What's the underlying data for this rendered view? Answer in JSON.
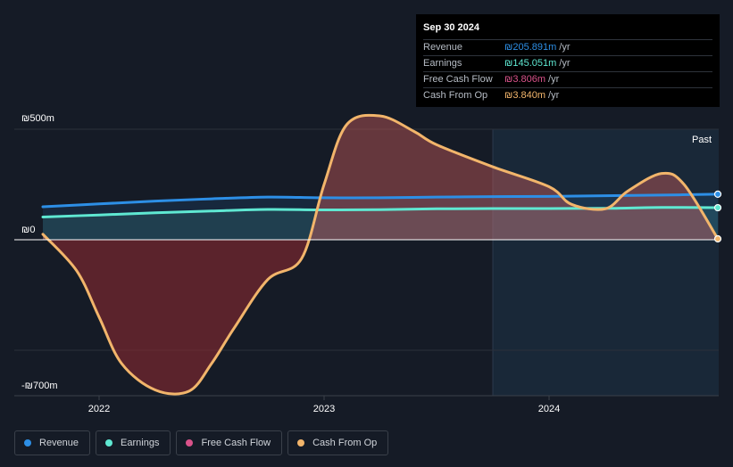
{
  "tooltip": {
    "date": "Sep 30 2024",
    "rows": [
      {
        "label": "Revenue",
        "value": "₪205.891m",
        "unit": "/yr",
        "color": "#2d8fe6"
      },
      {
        "label": "Earnings",
        "value": "₪145.051m",
        "unit": "/yr",
        "color": "#5fe8d2"
      },
      {
        "label": "Free Cash Flow",
        "value": "₪3.806m",
        "unit": "/yr",
        "color": "#d9528a"
      },
      {
        "label": "Cash From Op",
        "value": "₪3.840m",
        "unit": "/yr",
        "color": "#f2b56b"
      }
    ]
  },
  "past_label": "Past",
  "legend": [
    {
      "label": "Revenue",
      "color": "#2d8fe6"
    },
    {
      "label": "Earnings",
      "color": "#5fe8d2"
    },
    {
      "label": "Free Cash Flow",
      "color": "#d9528a"
    },
    {
      "label": "Cash From Op",
      "color": "#f2b56b"
    }
  ],
  "chart_data": {
    "type": "area",
    "y_axis_labels": [
      "₪500m",
      "₪0",
      "-₪700m"
    ],
    "y_axis_values": [
      500,
      0,
      -700
    ],
    "ylim": [
      -700,
      500
    ],
    "xlim": [
      2021.75,
      2024.75
    ],
    "x_ticks": [
      {
        "label": "2022",
        "value": 2022.0
      },
      {
        "label": "2023",
        "value": 2023.0
      },
      {
        "label": "2024",
        "value": 2024.0
      }
    ],
    "past_region_start": 2023.75,
    "series": [
      {
        "name": "Revenue",
        "color": "#2d8fe6",
        "x": [
          2021.75,
          2022.0,
          2022.25,
          2022.5,
          2022.75,
          2023.0,
          2023.25,
          2023.5,
          2023.75,
          2024.0,
          2024.25,
          2024.5,
          2024.75
        ],
        "y": [
          149,
          162,
          175,
          185,
          193,
          190,
          190,
          193,
          195,
          196,
          199,
          202,
          206
        ]
      },
      {
        "name": "Earnings",
        "color": "#5fe8d2",
        "x": [
          2021.75,
          2022.0,
          2022.25,
          2022.5,
          2022.75,
          2023.0,
          2023.25,
          2023.5,
          2023.75,
          2024.0,
          2024.25,
          2024.5,
          2024.75
        ],
        "y": [
          103,
          112,
          122,
          130,
          137,
          135,
          136,
          140,
          141,
          141,
          142,
          146,
          145
        ]
      },
      {
        "name": "Cash From Op",
        "color": "#f2b56b",
        "x": [
          2021.75,
          2021.9,
          2022.0,
          2022.1,
          2022.25,
          2022.4,
          2022.5,
          2022.6,
          2022.75,
          2022.9,
          2023.0,
          2023.1,
          2023.25,
          2023.4,
          2023.5,
          2023.75,
          2024.0,
          2024.1,
          2024.25,
          2024.35,
          2024.5,
          2024.6,
          2024.75
        ],
        "y": [
          25,
          -140,
          -350,
          -560,
          -680,
          -685,
          -560,
          -400,
          -180,
          -85,
          250,
          520,
          560,
          490,
          430,
          330,
          240,
          160,
          140,
          220,
          300,
          250,
          4
        ]
      }
    ]
  }
}
